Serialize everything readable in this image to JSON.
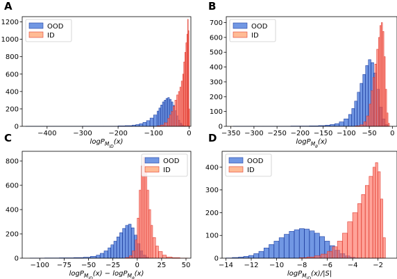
{
  "chart_data": [
    {
      "type": "bar",
      "panel_label": "A",
      "xlabel": "logP_{M_{ID}}(x)",
      "xlim": [
        -470,
        5
      ],
      "ylim": [
        0,
        1260
      ],
      "xticks": [
        -400,
        -300,
        -200,
        -100,
        0
      ],
      "xtick_labels": [
        "−400",
        "−300",
        "−200",
        "−100",
        "0"
      ],
      "yticks": [
        0,
        200,
        400,
        600,
        800,
        1000,
        1200
      ],
      "ytick_labels": [
        "0",
        "200",
        "400",
        "600",
        "800",
        "1000",
        "1200"
      ],
      "legend": {
        "position": "top-left",
        "entries": [
          "OOD",
          "ID"
        ]
      },
      "series": [
        {
          "name": "OOD",
          "color": "#3a6fd8",
          "bins": [
            {
              "x": -460,
              "y": 1
            },
            {
              "x": -380,
              "y": 1
            },
            {
              "x": -300,
              "y": 2
            },
            {
              "x": -240,
              "y": 2
            },
            {
              "x": -200,
              "y": 5
            },
            {
              "x": -180,
              "y": 8
            },
            {
              "x": -160,
              "y": 14
            },
            {
              "x": -150,
              "y": 20
            },
            {
              "x": -140,
              "y": 30
            },
            {
              "x": -130,
              "y": 45
            },
            {
              "x": -120,
              "y": 65
            },
            {
              "x": -110,
              "y": 95
            },
            {
              "x": -100,
              "y": 130
            },
            {
              "x": -90,
              "y": 175
            },
            {
              "x": -85,
              "y": 210
            },
            {
              "x": -80,
              "y": 245
            },
            {
              "x": -75,
              "y": 280
            },
            {
              "x": -70,
              "y": 300
            },
            {
              "x": -65,
              "y": 320
            },
            {
              "x": -60,
              "y": 330
            },
            {
              "x": -55,
              "y": 310
            },
            {
              "x": -50,
              "y": 280
            },
            {
              "x": -45,
              "y": 240
            },
            {
              "x": -40,
              "y": 180
            },
            {
              "x": -35,
              "y": 120
            },
            {
              "x": -30,
              "y": 70
            },
            {
              "x": -25,
              "y": 35
            },
            {
              "x": -20,
              "y": 15
            },
            {
              "x": -15,
              "y": 5
            }
          ]
        },
        {
          "name": "ID",
          "color": "#f08a6e",
          "bins": [
            {
              "x": -90,
              "y": 5
            },
            {
              "x": -80,
              "y": 15
            },
            {
              "x": -70,
              "y": 40
            },
            {
              "x": -60,
              "y": 90
            },
            {
              "x": -55,
              "y": 130
            },
            {
              "x": -50,
              "y": 170
            },
            {
              "x": -45,
              "y": 230
            },
            {
              "x": -40,
              "y": 300
            },
            {
              "x": -35,
              "y": 360
            },
            {
              "x": -30,
              "y": 400
            },
            {
              "x": -26,
              "y": 450
            },
            {
              "x": -22,
              "y": 520
            },
            {
              "x": -18,
              "y": 600
            },
            {
              "x": -15,
              "y": 740
            },
            {
              "x": -12,
              "y": 850
            },
            {
              "x": -9,
              "y": 960
            },
            {
              "x": -6,
              "y": 1060
            },
            {
              "x": -4,
              "y": 1230
            },
            {
              "x": -2,
              "y": 1100
            },
            {
              "x": 0,
              "y": 200
            }
          ]
        }
      ]
    },
    {
      "type": "bar",
      "panel_label": "B",
      "xlabel": "logP_{M_{θ}}(x)",
      "xlim": [
        -360,
        10
      ],
      "ylim": [
        0,
        740
      ],
      "xticks": [
        -350,
        -300,
        -250,
        -200,
        -150,
        -100,
        -50,
        0
      ],
      "xtick_labels": [
        "−350",
        "−300",
        "−250",
        "−200",
        "−150",
        "−100",
        "−50",
        "0"
      ],
      "yticks": [
        0,
        100,
        200,
        300,
        400,
        500,
        600,
        700
      ],
      "ytick_labels": [
        "0",
        "100",
        "200",
        "300",
        "400",
        "500",
        "600",
        "700"
      ],
      "legend": {
        "position": "top-left",
        "entries": [
          "OOD",
          "ID"
        ]
      },
      "series": [
        {
          "name": "OOD",
          "color": "#3a6fd8",
          "bins": [
            {
              "x": -345,
              "y": 1
            },
            {
              "x": -280,
              "y": 1
            },
            {
              "x": -220,
              "y": 2
            },
            {
              "x": -180,
              "y": 3
            },
            {
              "x": -160,
              "y": 5
            },
            {
              "x": -145,
              "y": 8
            },
            {
              "x": -135,
              "y": 12
            },
            {
              "x": -125,
              "y": 18
            },
            {
              "x": -115,
              "y": 30
            },
            {
              "x": -105,
              "y": 50
            },
            {
              "x": -95,
              "y": 80
            },
            {
              "x": -88,
              "y": 120
            },
            {
              "x": -82,
              "y": 170
            },
            {
              "x": -76,
              "y": 230
            },
            {
              "x": -70,
              "y": 290
            },
            {
              "x": -64,
              "y": 350
            },
            {
              "x": -58,
              "y": 410
            },
            {
              "x": -52,
              "y": 450
            },
            {
              "x": -46,
              "y": 430
            },
            {
              "x": -40,
              "y": 360
            },
            {
              "x": -34,
              "y": 250
            },
            {
              "x": -28,
              "y": 130
            },
            {
              "x": -22,
              "y": 50
            },
            {
              "x": -16,
              "y": 12
            }
          ]
        },
        {
          "name": "ID",
          "color": "#f08a6e",
          "bins": [
            {
              "x": -80,
              "y": 3
            },
            {
              "x": -70,
              "y": 10
            },
            {
              "x": -62,
              "y": 30
            },
            {
              "x": -56,
              "y": 70
            },
            {
              "x": -50,
              "y": 150
            },
            {
              "x": -46,
              "y": 240
            },
            {
              "x": -42,
              "y": 330
            },
            {
              "x": -38,
              "y": 420
            },
            {
              "x": -34,
              "y": 520
            },
            {
              "x": -30,
              "y": 600
            },
            {
              "x": -27,
              "y": 680
            },
            {
              "x": -24,
              "y": 700
            },
            {
              "x": -21,
              "y": 640
            },
            {
              "x": -18,
              "y": 470
            },
            {
              "x": -15,
              "y": 250
            },
            {
              "x": -12,
              "y": 90
            },
            {
              "x": -9,
              "y": 20
            }
          ]
        }
      ]
    },
    {
      "type": "bar",
      "panel_label": "C",
      "xlabel": "logP_{M_{ID}}(x) − logP_{M_{θ}}(x)",
      "xlim": [
        -118,
        55
      ],
      "ylim": [
        0,
        880
      ],
      "xticks": [
        -100,
        -75,
        -50,
        -25,
        0,
        25,
        50
      ],
      "xtick_labels": [
        "−100",
        "−75",
        "−50",
        "−25",
        "0",
        "25",
        "50"
      ],
      "yticks": [
        0,
        200,
        400,
        600,
        800
      ],
      "ytick_labels": [
        "0",
        "200",
        "400",
        "600",
        "800"
      ],
      "legend": {
        "position": "top-right",
        "entries": [
          "OOD",
          "ID"
        ]
      },
      "series": [
        {
          "name": "OOD",
          "color": "#3a6fd8",
          "bins": [
            {
              "x": -110,
              "y": 1
            },
            {
              "x": -95,
              "y": 2
            },
            {
              "x": -80,
              "y": 3
            },
            {
              "x": -65,
              "y": 5
            },
            {
              "x": -55,
              "y": 8
            },
            {
              "x": -48,
              "y": 15
            },
            {
              "x": -42,
              "y": 25
            },
            {
              "x": -38,
              "y": 40
            },
            {
              "x": -34,
              "y": 60
            },
            {
              "x": -30,
              "y": 85
            },
            {
              "x": -27,
              "y": 110
            },
            {
              "x": -24,
              "y": 140
            },
            {
              "x": -21,
              "y": 175
            },
            {
              "x": -18,
              "y": 210
            },
            {
              "x": -15,
              "y": 245
            },
            {
              "x": -12,
              "y": 270
            },
            {
              "x": -9,
              "y": 280
            },
            {
              "x": -6,
              "y": 250
            },
            {
              "x": -3,
              "y": 190
            },
            {
              "x": 0,
              "y": 120
            },
            {
              "x": 3,
              "y": 60
            },
            {
              "x": 6,
              "y": 25
            },
            {
              "x": 9,
              "y": 8
            }
          ]
        },
        {
          "name": "ID",
          "color": "#f08a6e",
          "bins": [
            {
              "x": -12,
              "y": 5
            },
            {
              "x": -8,
              "y": 20
            },
            {
              "x": -5,
              "y": 60
            },
            {
              "x": -2,
              "y": 150
            },
            {
              "x": 0,
              "y": 330
            },
            {
              "x": 2,
              "y": 560
            },
            {
              "x": 4,
              "y": 760
            },
            {
              "x": 6,
              "y": 830
            },
            {
              "x": 8,
              "y": 720
            },
            {
              "x": 10,
              "y": 560
            },
            {
              "x": 12,
              "y": 400
            },
            {
              "x": 14,
              "y": 270
            },
            {
              "x": 16,
              "y": 170
            },
            {
              "x": 19,
              "y": 100
            },
            {
              "x": 22,
              "y": 55
            },
            {
              "x": 26,
              "y": 25
            },
            {
              "x": 30,
              "y": 10
            },
            {
              "x": 36,
              "y": 4
            },
            {
              "x": 44,
              "y": 1
            }
          ]
        }
      ]
    },
    {
      "type": "bar",
      "panel_label": "D",
      "xlabel": "logP_{M_{ID}}(x)/|S|",
      "xlim": [
        -14.3,
        -0.5
      ],
      "ylim": [
        0,
        470
      ],
      "xticks": [
        -14,
        -12,
        -10,
        -8,
        -6,
        -4,
        -2
      ],
      "xtick_labels": [
        "−14",
        "−12",
        "−10",
        "−8",
        "−6",
        "−4",
        "−2"
      ],
      "yticks": [
        0,
        100,
        200,
        300,
        400
      ],
      "ytick_labels": [
        "0",
        "100",
        "200",
        "300",
        "400"
      ],
      "legend": {
        "position": "top-left",
        "entries": [
          "OOD",
          "ID"
        ]
      },
      "series": [
        {
          "name": "OOD",
          "color": "#3a6fd8",
          "bins": [
            {
              "x": -14.0,
              "y": 1
            },
            {
              "x": -13.5,
              "y": 3
            },
            {
              "x": -13.0,
              "y": 5
            },
            {
              "x": -12.6,
              "y": 8
            },
            {
              "x": -12.2,
              "y": 12
            },
            {
              "x": -11.8,
              "y": 20
            },
            {
              "x": -11.4,
              "y": 30
            },
            {
              "x": -11.0,
              "y": 45
            },
            {
              "x": -10.6,
              "y": 60
            },
            {
              "x": -10.2,
              "y": 75
            },
            {
              "x": -9.8,
              "y": 90
            },
            {
              "x": -9.4,
              "y": 105
            },
            {
              "x": -9.0,
              "y": 118
            },
            {
              "x": -8.6,
              "y": 125
            },
            {
              "x": -8.2,
              "y": 130
            },
            {
              "x": -7.8,
              "y": 128
            },
            {
              "x": -7.4,
              "y": 120
            },
            {
              "x": -7.0,
              "y": 110
            },
            {
              "x": -6.6,
              "y": 95
            },
            {
              "x": -6.2,
              "y": 75
            },
            {
              "x": -5.8,
              "y": 55
            },
            {
              "x": -5.4,
              "y": 35
            },
            {
              "x": -5.0,
              "y": 20
            },
            {
              "x": -4.6,
              "y": 10
            },
            {
              "x": -4.2,
              "y": 4
            },
            {
              "x": -3.8,
              "y": 1
            }
          ]
        },
        {
          "name": "ID",
          "color": "#f08a6e",
          "bins": [
            {
              "x": -8.2,
              "y": 2
            },
            {
              "x": -7.6,
              "y": 5
            },
            {
              "x": -7.0,
              "y": 10
            },
            {
              "x": -6.5,
              "y": 18
            },
            {
              "x": -6.0,
              "y": 30
            },
            {
              "x": -5.6,
              "y": 50
            },
            {
              "x": -5.2,
              "y": 75
            },
            {
              "x": -4.8,
              "y": 110
            },
            {
              "x": -4.4,
              "y": 160
            },
            {
              "x": -4.0,
              "y": 200
            },
            {
              "x": -3.6,
              "y": 240
            },
            {
              "x": -3.3,
              "y": 280
            },
            {
              "x": -3.0,
              "y": 320
            },
            {
              "x": -2.7,
              "y": 360
            },
            {
              "x": -2.4,
              "y": 400
            },
            {
              "x": -2.2,
              "y": 420
            },
            {
              "x": -2.0,
              "y": 380
            },
            {
              "x": -1.8,
              "y": 260
            },
            {
              "x": -1.6,
              "y": 90
            }
          ]
        }
      ]
    }
  ]
}
